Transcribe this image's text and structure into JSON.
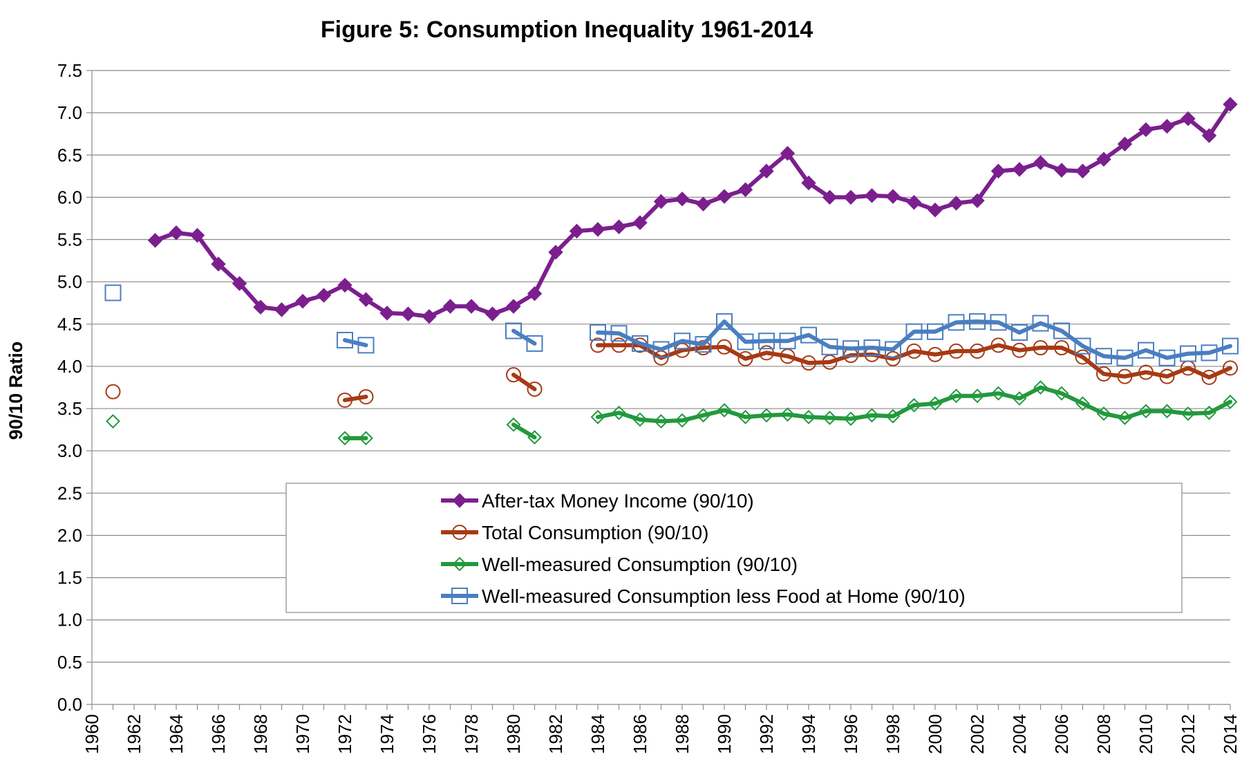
{
  "chart_data": {
    "type": "line",
    "title": "Figure 5: Consumption Inequality 1961-2014",
    "xlabel": "",
    "ylabel": "90/10 Ratio",
    "xlim": [
      1960,
      2014
    ],
    "ylim": [
      0,
      7.5
    ],
    "grid": "horizontal",
    "legend_position": "lower-center",
    "x_ticks": [
      "1960",
      "1962",
      "1964",
      "1966",
      "1968",
      "1970",
      "1972",
      "1974",
      "1976",
      "1978",
      "1980",
      "1982",
      "1984",
      "1986",
      "1988",
      "1990",
      "1992",
      "1994",
      "1996",
      "1998",
      "2000",
      "2002",
      "2004",
      "2006",
      "2008",
      "2010",
      "2012",
      "2014"
    ],
    "y_ticks": [
      "0.0",
      "0.5",
      "1.0",
      "1.5",
      "2.0",
      "2.5",
      "3.0",
      "3.5",
      "4.0",
      "4.5",
      "5.0",
      "5.5",
      "6.0",
      "6.5",
      "7.0",
      "7.5"
    ],
    "series": [
      {
        "name": "After-tax Money Income (90/10)",
        "color": "#7B1F8E",
        "marker": "diamond-filled",
        "segments": [
          [
            [
              1963,
              5.49
            ],
            [
              1964,
              5.58
            ],
            [
              1965,
              5.55
            ],
            [
              1966,
              5.21
            ],
            [
              1967,
              4.98
            ],
            [
              1968,
              4.7
            ],
            [
              1969,
              4.67
            ],
            [
              1970,
              4.77
            ],
            [
              1971,
              4.84
            ],
            [
              1972,
              4.96
            ],
            [
              1973,
              4.79
            ],
            [
              1974,
              4.63
            ],
            [
              1975,
              4.62
            ],
            [
              1976,
              4.59
            ],
            [
              1977,
              4.71
            ],
            [
              1978,
              4.71
            ],
            [
              1979,
              4.62
            ],
            [
              1980,
              4.71
            ],
            [
              1981,
              4.86
            ],
            [
              1982,
              5.35
            ],
            [
              1983,
              5.6
            ],
            [
              1984,
              5.62
            ],
            [
              1985,
              5.65
            ],
            [
              1986,
              5.7
            ],
            [
              1987,
              5.95
            ],
            [
              1988,
              5.98
            ],
            [
              1989,
              5.92
            ],
            [
              1990,
              6.01
            ],
            [
              1991,
              6.09
            ],
            [
              1992,
              6.31
            ],
            [
              1993,
              6.52
            ],
            [
              1994,
              6.17
            ],
            [
              1995,
              6.0
            ],
            [
              1996,
              6.0
            ],
            [
              1997,
              6.02
            ],
            [
              1998,
              6.01
            ],
            [
              1999,
              5.94
            ],
            [
              2000,
              5.85
            ],
            [
              2001,
              5.93
            ],
            [
              2002,
              5.96
            ],
            [
              2003,
              6.31
            ],
            [
              2004,
              6.33
            ],
            [
              2005,
              6.41
            ],
            [
              2006,
              6.32
            ],
            [
              2007,
              6.31
            ],
            [
              2008,
              6.45
            ],
            [
              2009,
              6.63
            ],
            [
              2010,
              6.8
            ],
            [
              2011,
              6.84
            ],
            [
              2012,
              6.93
            ],
            [
              2013,
              6.73
            ],
            [
              2014,
              7.1
            ]
          ]
        ]
      },
      {
        "name": "Total Consumption (90/10)",
        "color": "#A63A14",
        "marker": "circle-open",
        "segments": [
          [
            [
              1961,
              3.7
            ]
          ],
          [
            [
              1972,
              3.6
            ],
            [
              1973,
              3.64
            ]
          ],
          [
            [
              1980,
              3.9
            ],
            [
              1981,
              3.73
            ]
          ],
          [
            [
              1984,
              4.25
            ],
            [
              1985,
              4.25
            ],
            [
              1986,
              4.25
            ],
            [
              1987,
              4.1
            ],
            [
              1988,
              4.19
            ],
            [
              1989,
              4.22
            ],
            [
              1990,
              4.23
            ],
            [
              1991,
              4.09
            ],
            [
              1992,
              4.16
            ],
            [
              1993,
              4.12
            ],
            [
              1994,
              4.04
            ],
            [
              1995,
              4.05
            ],
            [
              1996,
              4.13
            ],
            [
              1997,
              4.14
            ],
            [
              1998,
              4.09
            ],
            [
              1999,
              4.18
            ],
            [
              2000,
              4.14
            ],
            [
              2001,
              4.18
            ],
            [
              2002,
              4.18
            ],
            [
              2003,
              4.25
            ],
            [
              2004,
              4.19
            ],
            [
              2005,
              4.22
            ],
            [
              2006,
              4.22
            ],
            [
              2007,
              4.11
            ],
            [
              2008,
              3.91
            ],
            [
              2009,
              3.88
            ],
            [
              2010,
              3.93
            ],
            [
              2011,
              3.88
            ],
            [
              2012,
              3.98
            ],
            [
              2013,
              3.87
            ],
            [
              2014,
              3.98
            ]
          ]
        ]
      },
      {
        "name": "Well-measured Consumption (90/10)",
        "color": "#22993C",
        "marker": "diamond-open",
        "segments": [
          [
            [
              1961,
              3.35
            ]
          ],
          [
            [
              1972,
              3.15
            ],
            [
              1973,
              3.15
            ]
          ],
          [
            [
              1980,
              3.31
            ],
            [
              1981,
              3.16
            ]
          ],
          [
            [
              1984,
              3.4
            ],
            [
              1985,
              3.45
            ],
            [
              1986,
              3.37
            ],
            [
              1987,
              3.35
            ],
            [
              1988,
              3.36
            ],
            [
              1989,
              3.42
            ],
            [
              1990,
              3.48
            ],
            [
              1991,
              3.4
            ],
            [
              1992,
              3.42
            ],
            [
              1993,
              3.43
            ],
            [
              1994,
              3.4
            ],
            [
              1995,
              3.39
            ],
            [
              1996,
              3.38
            ],
            [
              1997,
              3.42
            ],
            [
              1998,
              3.41
            ],
            [
              1999,
              3.54
            ],
            [
              2000,
              3.56
            ],
            [
              2001,
              3.65
            ],
            [
              2002,
              3.65
            ],
            [
              2003,
              3.68
            ],
            [
              2004,
              3.62
            ],
            [
              2005,
              3.75
            ],
            [
              2006,
              3.68
            ],
            [
              2007,
              3.56
            ],
            [
              2008,
              3.44
            ],
            [
              2009,
              3.39
            ],
            [
              2010,
              3.47
            ],
            [
              2011,
              3.47
            ],
            [
              2012,
              3.44
            ],
            [
              2013,
              3.45
            ],
            [
              2014,
              3.58
            ]
          ]
        ]
      },
      {
        "name": "Well-measured Consumption less Food at Home (90/10)",
        "color": "#4A7EC0",
        "marker": "square-open",
        "segments": [
          [
            [
              1961,
              4.87
            ]
          ],
          [
            [
              1972,
              4.31
            ],
            [
              1973,
              4.25
            ]
          ],
          [
            [
              1980,
              4.42
            ],
            [
              1981,
              4.27
            ]
          ],
          [
            [
              1984,
              4.4
            ],
            [
              1985,
              4.39
            ],
            [
              1986,
              4.27
            ],
            [
              1987,
              4.2
            ],
            [
              1988,
              4.3
            ],
            [
              1989,
              4.26
            ],
            [
              1990,
              4.53
            ],
            [
              1991,
              4.29
            ],
            [
              1992,
              4.3
            ],
            [
              1993,
              4.3
            ],
            [
              1994,
              4.37
            ],
            [
              1995,
              4.23
            ],
            [
              1996,
              4.21
            ],
            [
              1997,
              4.22
            ],
            [
              1998,
              4.2
            ],
            [
              1999,
              4.41
            ],
            [
              2000,
              4.41
            ],
            [
              2001,
              4.52
            ],
            [
              2002,
              4.53
            ],
            [
              2003,
              4.52
            ],
            [
              2004,
              4.4
            ],
            [
              2005,
              4.51
            ],
            [
              2006,
              4.42
            ],
            [
              2007,
              4.24
            ],
            [
              2008,
              4.12
            ],
            [
              2009,
              4.1
            ],
            [
              2010,
              4.19
            ],
            [
              2011,
              4.1
            ],
            [
              2012,
              4.15
            ],
            [
              2013,
              4.16
            ],
            [
              2014,
              4.24
            ]
          ]
        ]
      }
    ]
  }
}
